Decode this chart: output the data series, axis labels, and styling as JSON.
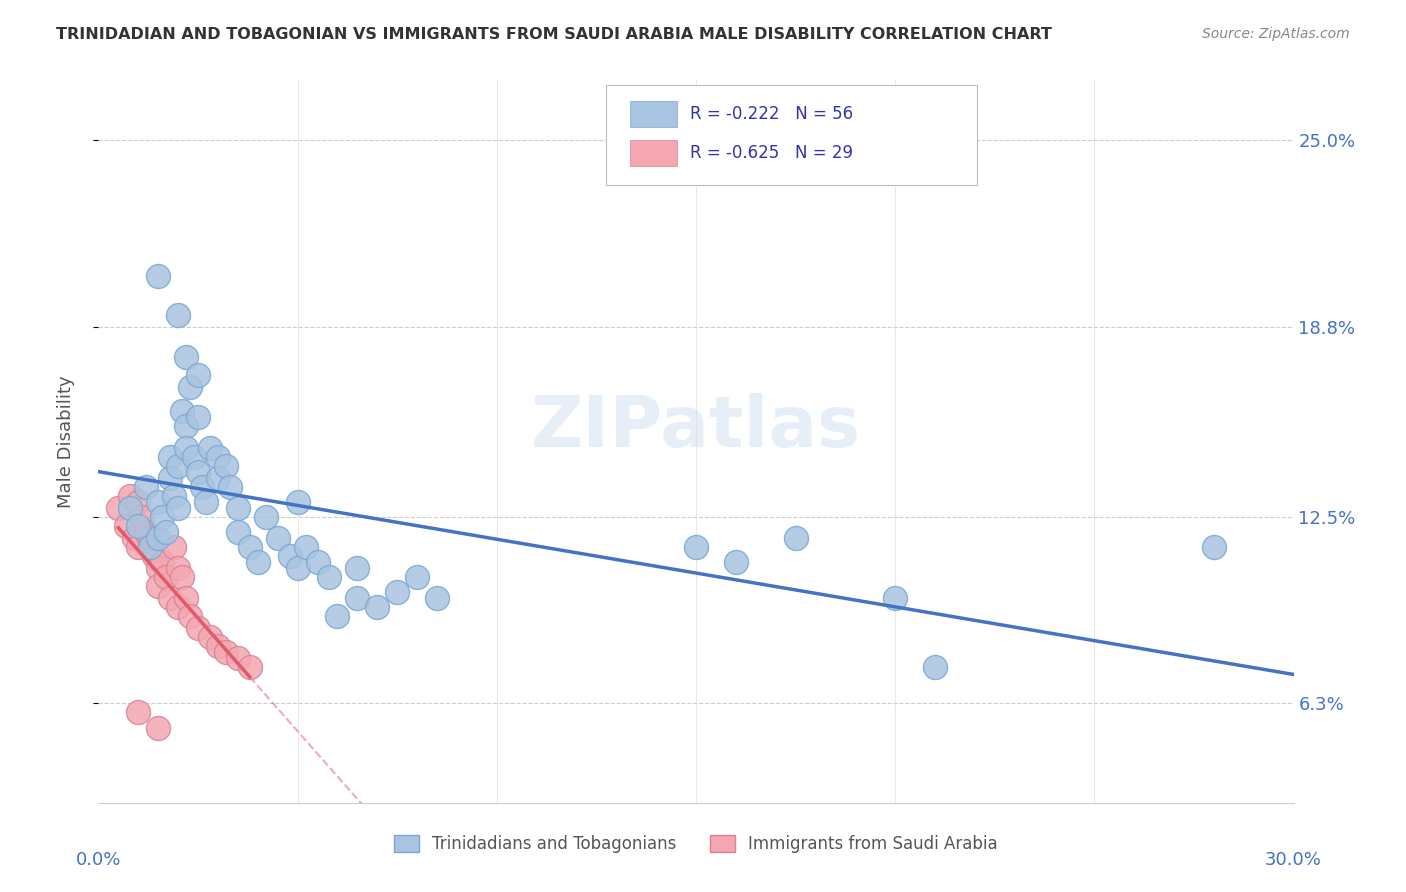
{
  "title": "TRINIDADIAN AND TOBAGONIAN VS IMMIGRANTS FROM SAUDI ARABIA MALE DISABILITY CORRELATION CHART",
  "source": "Source: ZipAtlas.com",
  "ylabel": "Male Disability",
  "y_ticks": [
    0.063,
    0.125,
    0.188,
    0.25
  ],
  "y_tick_labels": [
    "6.3%",
    "12.5%",
    "18.8%",
    "25.0%"
  ],
  "x_min": 0.0,
  "x_max": 0.3,
  "y_min": 0.03,
  "y_max": 0.27,
  "color_blue": "#a8c4e0",
  "color_pink": "#f4a7b0",
  "color_blue_edge": "#7aa8d4",
  "color_pink_edge": "#d4849a",
  "color_blue_line": "#4472c4",
  "color_pink_line": "#e05a6a",
  "watermark": "ZIPatlas",
  "legend_label1": "R = -0.222   N = 56",
  "legend_label2": "R = -0.625   N = 29",
  "bottom_label1": "Trinidadians and Tobagonians",
  "bottom_label2": "Immigrants from Saudi Arabia",
  "blue_scatter": [
    [
      0.008,
      0.128
    ],
    [
      0.01,
      0.122
    ],
    [
      0.012,
      0.135
    ],
    [
      0.013,
      0.115
    ],
    [
      0.015,
      0.13
    ],
    [
      0.015,
      0.118
    ],
    [
      0.016,
      0.125
    ],
    [
      0.017,
      0.12
    ],
    [
      0.018,
      0.145
    ],
    [
      0.018,
      0.138
    ],
    [
      0.019,
      0.132
    ],
    [
      0.02,
      0.128
    ],
    [
      0.02,
      0.142
    ],
    [
      0.021,
      0.16
    ],
    [
      0.022,
      0.155
    ],
    [
      0.022,
      0.148
    ],
    [
      0.023,
      0.168
    ],
    [
      0.024,
      0.145
    ],
    [
      0.025,
      0.158
    ],
    [
      0.025,
      0.14
    ],
    [
      0.026,
      0.135
    ],
    [
      0.027,
      0.13
    ],
    [
      0.028,
      0.148
    ],
    [
      0.03,
      0.145
    ],
    [
      0.03,
      0.138
    ],
    [
      0.032,
      0.142
    ],
    [
      0.033,
      0.135
    ],
    [
      0.035,
      0.128
    ],
    [
      0.035,
      0.12
    ],
    [
      0.038,
      0.115
    ],
    [
      0.04,
      0.11
    ],
    [
      0.042,
      0.125
    ],
    [
      0.045,
      0.118
    ],
    [
      0.048,
      0.112
    ],
    [
      0.05,
      0.13
    ],
    [
      0.05,
      0.108
    ],
    [
      0.052,
      0.115
    ],
    [
      0.055,
      0.11
    ],
    [
      0.058,
      0.105
    ],
    [
      0.06,
      0.092
    ],
    [
      0.065,
      0.098
    ],
    [
      0.065,
      0.108
    ],
    [
      0.07,
      0.095
    ],
    [
      0.075,
      0.1
    ],
    [
      0.08,
      0.105
    ],
    [
      0.085,
      0.098
    ],
    [
      0.015,
      0.205
    ],
    [
      0.02,
      0.192
    ],
    [
      0.022,
      0.178
    ],
    [
      0.025,
      0.172
    ],
    [
      0.15,
      0.115
    ],
    [
      0.16,
      0.11
    ],
    [
      0.175,
      0.118
    ],
    [
      0.2,
      0.098
    ],
    [
      0.21,
      0.075
    ],
    [
      0.28,
      0.115
    ]
  ],
  "pink_scatter": [
    [
      0.005,
      0.128
    ],
    [
      0.007,
      0.122
    ],
    [
      0.008,
      0.132
    ],
    [
      0.009,
      0.118
    ],
    [
      0.01,
      0.13
    ],
    [
      0.01,
      0.115
    ],
    [
      0.011,
      0.125
    ],
    [
      0.012,
      0.12
    ],
    [
      0.013,
      0.118
    ],
    [
      0.014,
      0.112
    ],
    [
      0.015,
      0.108
    ],
    [
      0.015,
      0.102
    ],
    [
      0.016,
      0.11
    ],
    [
      0.017,
      0.105
    ],
    [
      0.018,
      0.098
    ],
    [
      0.019,
      0.115
    ],
    [
      0.02,
      0.108
    ],
    [
      0.02,
      0.095
    ],
    [
      0.021,
      0.105
    ],
    [
      0.022,
      0.098
    ],
    [
      0.023,
      0.092
    ],
    [
      0.025,
      0.088
    ],
    [
      0.028,
      0.085
    ],
    [
      0.03,
      0.082
    ],
    [
      0.032,
      0.08
    ],
    [
      0.035,
      0.078
    ],
    [
      0.038,
      0.075
    ],
    [
      0.01,
      0.06
    ],
    [
      0.015,
      0.055
    ]
  ]
}
